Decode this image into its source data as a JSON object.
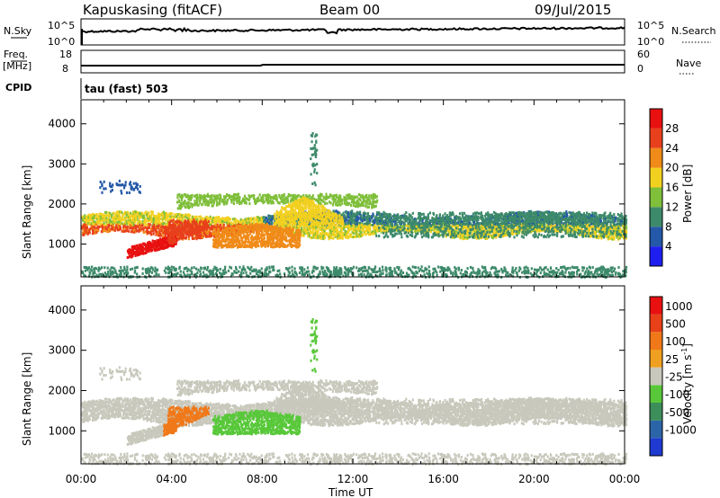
{
  "header": {
    "radar": "Kapuskasing (fitACF)",
    "beam": "Beam 00",
    "date": "09/Jul/2015"
  },
  "strips": {
    "nsky": {
      "label": "N.Sky",
      "right_label": "N.Search",
      "left_ticks": [
        "10^5",
        "10^0"
      ],
      "right_ticks": [
        "10^5",
        "10^0"
      ]
    },
    "freq": {
      "label_line1": "Freq.",
      "label_line2": "[MHz]",
      "right_label": "Nave",
      "left_ticks": [
        "18",
        "8"
      ],
      "right_ticks": [
        "60",
        "0"
      ]
    },
    "cpid": {
      "label": "CPID",
      "value": "tau (fast) 503"
    }
  },
  "chart_data": [
    {
      "type": "heatmap",
      "panel": "power",
      "ylabel": "Slant Range [km]",
      "xlabel": "Time UT",
      "xlim_hours": [
        0,
        24
      ],
      "ylim": [
        180,
        4600
      ],
      "x_ticks": [
        "00:00",
        "04:00",
        "08:00",
        "12:00",
        "16:00",
        "20:00",
        "00:00"
      ],
      "y_ticks": [
        1000,
        2000,
        3000,
        4000
      ],
      "colorbar": {
        "label": "Power [dB]",
        "ticks": [
          "4",
          "8",
          "12",
          "16",
          "20",
          "24",
          "28"
        ],
        "colors": [
          "#1e1ef0",
          "#2458a8",
          "#3d8a6a",
          "#7fbf3a",
          "#f2d020",
          "#f08a18",
          "#e8401c",
          "#e81010"
        ]
      }
    },
    {
      "type": "heatmap",
      "panel": "velocity",
      "ylabel": "Slant Range [km]",
      "xlabel": "Time UT",
      "xlim_hours": [
        0,
        24
      ],
      "ylim": [
        180,
        4600
      ],
      "x_ticks": [
        "00:00",
        "04:00",
        "08:00",
        "12:00",
        "16:00",
        "20:00",
        "00:00"
      ],
      "y_ticks": [
        1000,
        2000,
        3000,
        4000
      ],
      "colorbar": {
        "label": "Velocity [m s",
        "label_sup": "-1",
        "label_end": "]",
        "ticks": [
          "1000",
          "500",
          "100",
          "25",
          "-25",
          "-100",
          "-500",
          "-1000"
        ],
        "colors": [
          "#1e3ad0",
          "#2c64a8",
          "#3c8e5a",
          "#58c83a",
          "#c8c8bc",
          "#f0a020",
          "#f07818",
          "#e84018",
          "#e81010"
        ]
      }
    }
  ]
}
